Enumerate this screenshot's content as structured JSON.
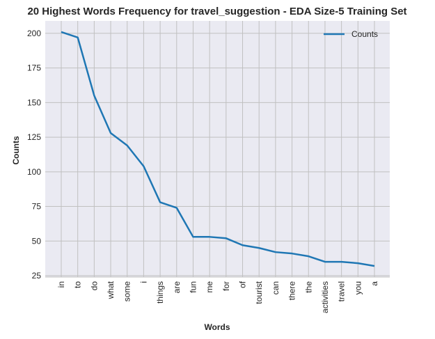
{
  "chart_data": {
    "type": "line",
    "title": "20 Highest Words Frequency for travel_suggestion - EDA Size-5 Training Set",
    "xlabel": "Words",
    "ylabel": "Counts",
    "categories": [
      "in",
      "to",
      "do",
      "what",
      "some",
      "i",
      "things",
      "are",
      "fun",
      "me",
      "for",
      "of",
      "tourist",
      "can",
      "there",
      "the",
      "activities",
      "travel",
      "you",
      "a"
    ],
    "series": [
      {
        "name": "Counts",
        "values": [
          201,
          197,
          155,
          128,
          119,
          104,
          78,
          74,
          53,
          53,
          52,
          47,
          45,
          42,
          41,
          39,
          35,
          35,
          34,
          32
        ],
        "color": "#1f77b4"
      }
    ],
    "ylim": [
      24,
      209
    ],
    "yticks": [
      25,
      50,
      75,
      100,
      125,
      150,
      175,
      200
    ],
    "grid": true,
    "legend_position": "top-right",
    "background_color": "#eaeaf2",
    "grid_color": "#c0c0c0"
  }
}
